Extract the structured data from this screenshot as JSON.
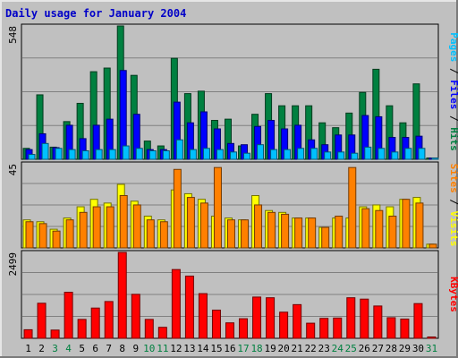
{
  "title": "Daily usage for January 2004",
  "chart_data": [
    {
      "type": "bar",
      "name": "pages-files-hits",
      "ymax_label": "548",
      "ylim": [
        0,
        548
      ],
      "categories": [
        "1",
        "2",
        "3",
        "4",
        "5",
        "6",
        "7",
        "8",
        "9",
        "10",
        "11",
        "12",
        "13",
        "14",
        "15",
        "16",
        "17",
        "18",
        "19",
        "20",
        "21",
        "22",
        "23",
        "24",
        "25",
        "26",
        "27",
        "28",
        "29",
        "30",
        "31"
      ],
      "weekend_days": [
        "3",
        "4",
        "10",
        "11",
        "17",
        "18",
        "24",
        "25",
        "31"
      ],
      "series": [
        {
          "name": "Hits",
          "color": "#008040",
          "values": [
            45,
            265,
            50,
            155,
            230,
            360,
            375,
            548,
            345,
            75,
            55,
            415,
            270,
            280,
            160,
            165,
            55,
            185,
            270,
            220,
            220,
            220,
            150,
            130,
            190,
            275,
            370,
            220,
            150,
            310,
            0
          ]
        },
        {
          "name": "Files",
          "color": "#0000ff",
          "values": [
            40,
            105,
            48,
            140,
            85,
            140,
            165,
            365,
            185,
            40,
            40,
            235,
            150,
            195,
            125,
            65,
            60,
            135,
            160,
            125,
            140,
            80,
            60,
            100,
            100,
            180,
            175,
            90,
            90,
            95,
            0
          ]
        },
        {
          "name": "Pages",
          "color": "#00c0ff",
          "values": [
            20,
            65,
            45,
            40,
            35,
            40,
            40,
            55,
            45,
            35,
            35,
            80,
            40,
            45,
            40,
            30,
            25,
            60,
            40,
            40,
            45,
            45,
            30,
            30,
            25,
            50,
            45,
            30,
            45,
            45,
            0
          ]
        }
      ],
      "right_label": [
        {
          "text": "Pages",
          "color": "#00c0ff"
        },
        {
          "text": " / ",
          "color": "#000000"
        },
        {
          "text": "Files",
          "color": "#0000ff"
        },
        {
          "text": " / ",
          "color": "#000000"
        },
        {
          "text": "Hits",
          "color": "#008040"
        }
      ]
    },
    {
      "type": "bar",
      "name": "sites-visits",
      "ymax_label": "45",
      "ylim": [
        0,
        45
      ],
      "categories": [
        "1",
        "2",
        "3",
        "4",
        "5",
        "6",
        "7",
        "8",
        "9",
        "10",
        "11",
        "12",
        "13",
        "14",
        "15",
        "16",
        "17",
        "18",
        "19",
        "20",
        "21",
        "22",
        "23",
        "24",
        "25",
        "26",
        "27",
        "28",
        "29",
        "30",
        "31"
      ],
      "series": [
        {
          "name": "Visits",
          "color": "#ffff00",
          "values": [
            15,
            14,
            10,
            16,
            22,
            26,
            24,
            34,
            25,
            17,
            15,
            31,
            29,
            26,
            17,
            16,
            15,
            28,
            20,
            19,
            16,
            16,
            11,
            16,
            16,
            22,
            23,
            22,
            26,
            27,
            2
          ]
        },
        {
          "name": "Sites",
          "color": "#ff8000",
          "values": [
            14,
            13,
            9,
            15,
            19,
            22,
            22,
            28,
            23,
            15,
            14,
            42,
            27,
            24,
            43,
            15,
            15,
            23,
            19,
            18,
            16,
            16,
            11,
            17,
            43,
            21,
            20,
            17,
            26,
            24,
            2
          ]
        }
      ],
      "right_label": [
        {
          "text": "Sites",
          "color": "#ff8000"
        },
        {
          "text": " / ",
          "color": "#000000"
        },
        {
          "text": "Visits",
          "color": "#ffff00"
        }
      ]
    },
    {
      "type": "bar",
      "name": "kbytes",
      "ymax_label": "2499",
      "ylim": [
        0,
        2499
      ],
      "categories": [
        "1",
        "2",
        "3",
        "4",
        "5",
        "6",
        "7",
        "8",
        "9",
        "10",
        "11",
        "12",
        "13",
        "14",
        "15",
        "16",
        "17",
        "18",
        "19",
        "20",
        "21",
        "22",
        "23",
        "24",
        "25",
        "26",
        "27",
        "28",
        "29",
        "30",
        "31"
      ],
      "series": [
        {
          "name": "KBytes",
          "color": "#ff0000",
          "values": [
            250,
            1020,
            240,
            1340,
            550,
            880,
            1070,
            2499,
            1280,
            550,
            320,
            2000,
            1810,
            1300,
            820,
            450,
            570,
            1200,
            1180,
            760,
            980,
            440,
            580,
            590,
            1180,
            1140,
            940,
            600,
            560,
            1010,
            0
          ]
        }
      ],
      "right_label": [
        {
          "text": "KBytes",
          "color": "#ff0000"
        }
      ]
    }
  ],
  "colors": {
    "panel_bg": "#c0c0c0",
    "grid": "#808080",
    "title": "#0000c8",
    "weekday_label": "#000000",
    "weekend_label": "#008040"
  }
}
